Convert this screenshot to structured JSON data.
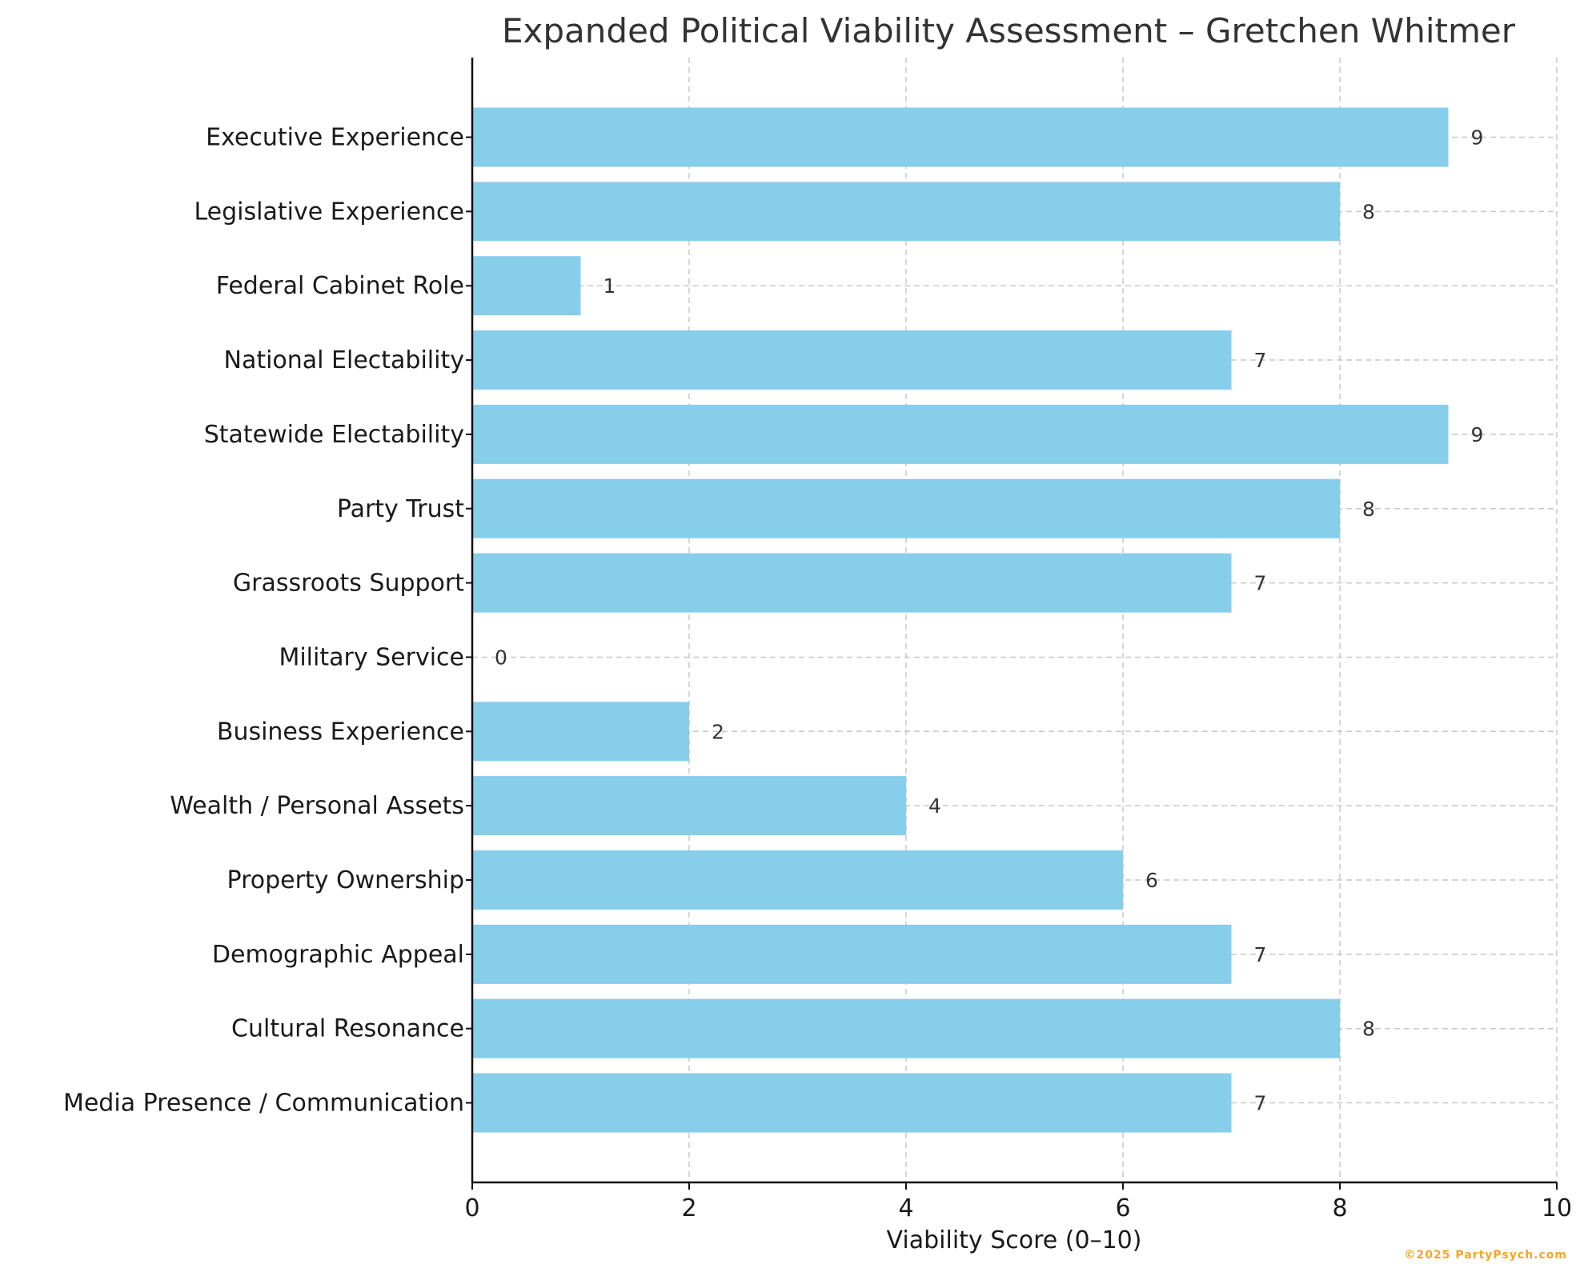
{
  "chart_data": {
    "type": "bar",
    "orientation": "horizontal",
    "title": "Expanded Political Viability Assessment – Gretchen Whitmer",
    "xlabel": "Viability Score (0–10)",
    "ylabel": "",
    "xlim": [
      0,
      10
    ],
    "xticks": [
      "0",
      "2",
      "4",
      "6",
      "8",
      "10"
    ],
    "grid": true,
    "categories": [
      "Executive Experience",
      "Legislative Experience",
      "Federal Cabinet Role",
      "National Electability",
      "Statewide Electability",
      "Party Trust",
      "Grassroots Support",
      "Military Service",
      "Business Experience",
      "Wealth / Personal Assets",
      "Property Ownership",
      "Demographic Appeal",
      "Cultural Resonance",
      "Media Presence / Communication"
    ],
    "values": [
      9,
      8,
      1,
      7,
      9,
      8,
      7,
      0,
      2,
      4,
      6,
      7,
      8,
      7
    ],
    "value_labels": [
      "9",
      "8",
      "1",
      "7",
      "9",
      "8",
      "7",
      "0",
      "2",
      "4",
      "6",
      "7",
      "8",
      "7"
    ],
    "bar_color": "#87ceeb"
  },
  "watermark": {
    "text": "©2025 PartyPsych.com",
    "color": "#f5a623"
  }
}
